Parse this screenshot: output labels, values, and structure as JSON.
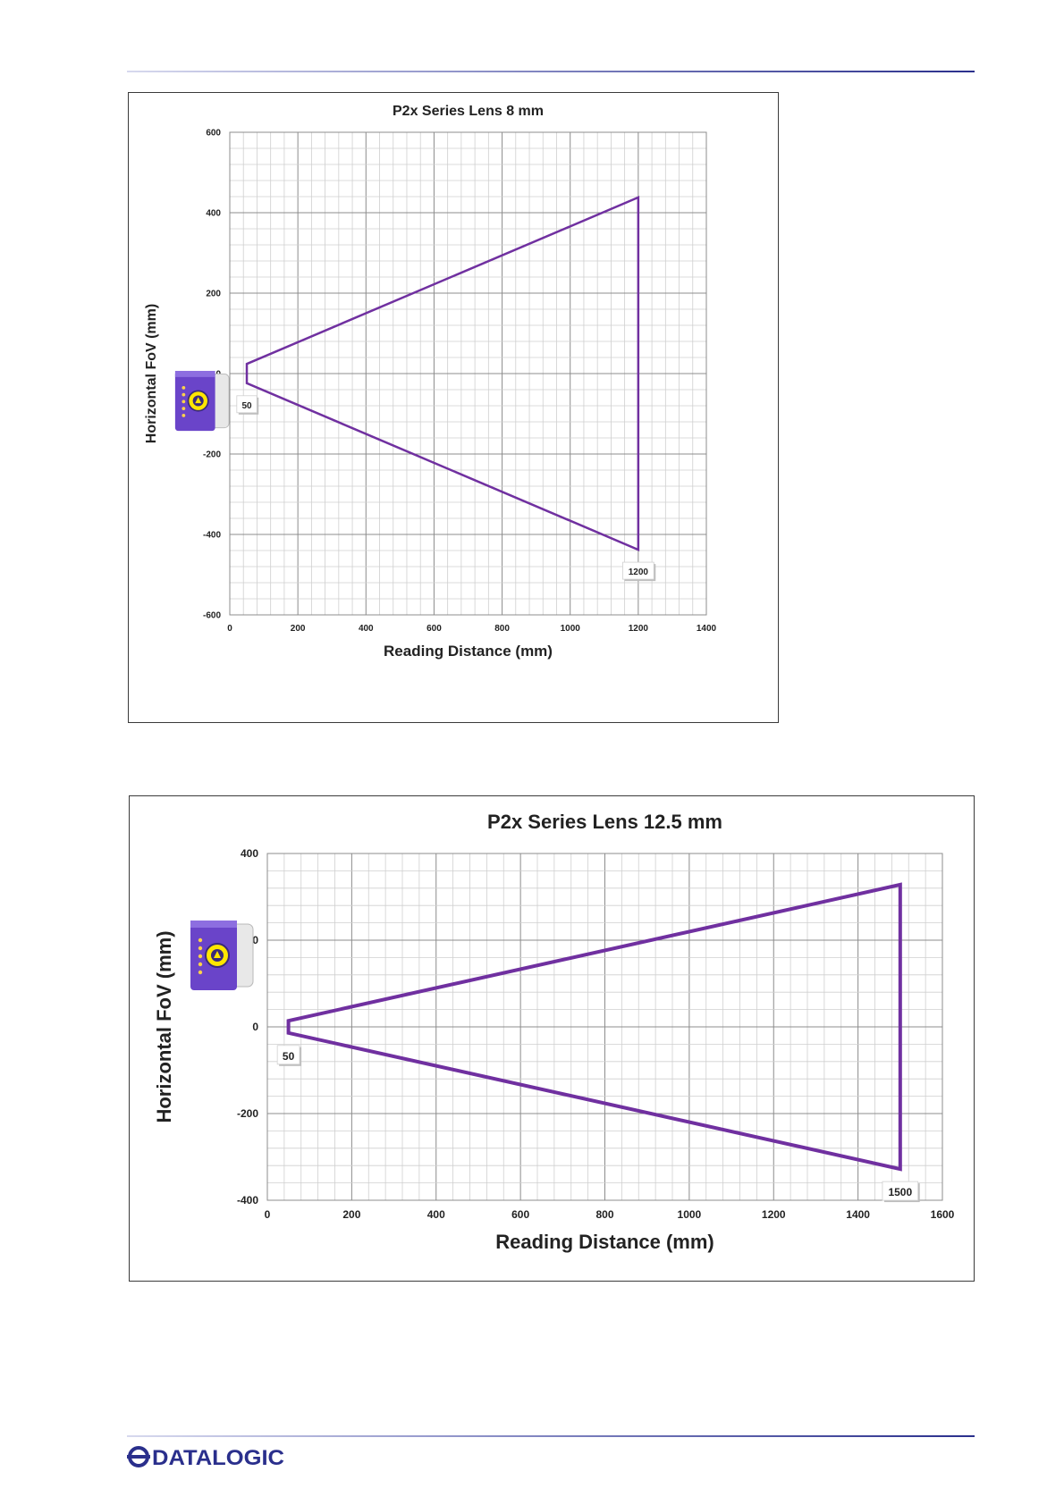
{
  "page": {
    "logo_text": "DATALOGIC"
  },
  "colors": {
    "series": "#7030a0",
    "grid_major": "#8c8c8c",
    "grid_minor": "#cfcfcf",
    "device_body": "#6a44c9",
    "device_lens": "#ffe600"
  },
  "chart_data": [
    {
      "type": "area",
      "title": "P2x Series Lens 8 mm",
      "xlabel": "Reading Distance (mm)",
      "ylabel": "Horizontal FoV (mm)",
      "xlim": [
        0,
        1400
      ],
      "ylim": [
        -600,
        600
      ],
      "xticks": [
        "0",
        "200",
        "400",
        "600",
        "800",
        "1000",
        "1200",
        "1400"
      ],
      "yticks": [
        "600",
        "400",
        "200",
        "0",
        "-200",
        "-400",
        "-600"
      ],
      "grid": true,
      "series": [
        {
          "values": [
            {
              "x": 50,
              "y": 24
            },
            {
              "x": 1200,
              "y": 438
            },
            {
              "x": 1200,
              "y": -438
            },
            {
              "x": 50,
              "y": -24
            }
          ]
        }
      ],
      "annotations": [
        {
          "text": "50",
          "x": 50,
          "y": -24
        },
        {
          "text": "1200",
          "x": 1200,
          "y": -438
        }
      ]
    },
    {
      "type": "area",
      "title": "P2x Series Lens 12.5 mm",
      "xlabel": "Reading Distance (mm)",
      "ylabel": "Horizontal FoV (mm)",
      "xlim": [
        0,
        1600
      ],
      "ylim": [
        -400,
        400
      ],
      "xticks": [
        "0",
        "200",
        "400",
        "600",
        "800",
        "1000",
        "1200",
        "1400",
        "1600"
      ],
      "yticks": [
        "400",
        "200",
        "0",
        "-200",
        "-400"
      ],
      "grid": true,
      "series": [
        {
          "values": [
            {
              "x": 50,
              "y": 14
            },
            {
              "x": 1500,
              "y": 328
            },
            {
              "x": 1500,
              "y": -328
            },
            {
              "x": 50,
              "y": -14
            }
          ]
        }
      ],
      "annotations": [
        {
          "text": "50",
          "x": 50,
          "y": -14
        },
        {
          "text": "1500",
          "x": 1500,
          "y": -328
        }
      ]
    }
  ]
}
